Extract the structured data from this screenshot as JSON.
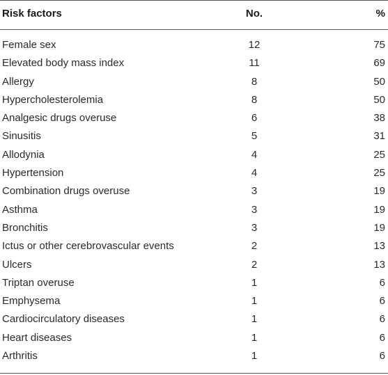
{
  "table": {
    "headers": {
      "factor": "Risk factors",
      "no": "No.",
      "pct": "%"
    },
    "rows": [
      {
        "factor": "Female sex",
        "no": "12",
        "pct": "75"
      },
      {
        "factor": "Elevated body mass index",
        "no": "11",
        "pct": "69"
      },
      {
        "factor": "Allergy",
        "no": "8",
        "pct": "50"
      },
      {
        "factor": "Hypercholesterolemia",
        "no": "8",
        "pct": "50"
      },
      {
        "factor": "Analgesic drugs overuse",
        "no": "6",
        "pct": "38"
      },
      {
        "factor": "Sinusitis",
        "no": "5",
        "pct": "31"
      },
      {
        "factor": "Allodynia",
        "no": "4",
        "pct": "25"
      },
      {
        "factor": "Hypertension",
        "no": "4",
        "pct": "25"
      },
      {
        "factor": "Combination drugs overuse",
        "no": "3",
        "pct": "19"
      },
      {
        "factor": "Asthma",
        "no": "3",
        "pct": "19"
      },
      {
        "factor": "Bronchitis",
        "no": "3",
        "pct": "19"
      },
      {
        "factor": "Ictus or other cerebrovascular events",
        "no": "2",
        "pct": "13"
      },
      {
        "factor": "Ulcers",
        "no": "2",
        "pct": "13"
      },
      {
        "factor": "Triptan overuse",
        "no": "1",
        "pct": "6"
      },
      {
        "factor": "Emphysema",
        "no": "1",
        "pct": "6"
      },
      {
        "factor": "Cardiocirculatory diseases",
        "no": "1",
        "pct": "6"
      },
      {
        "factor": "Heart diseases",
        "no": "1",
        "pct": "6"
      },
      {
        "factor": "Arthritis",
        "no": "1",
        "pct": "6"
      }
    ]
  },
  "colors": {
    "rule": "#555555",
    "text": "#2a2a2a"
  }
}
